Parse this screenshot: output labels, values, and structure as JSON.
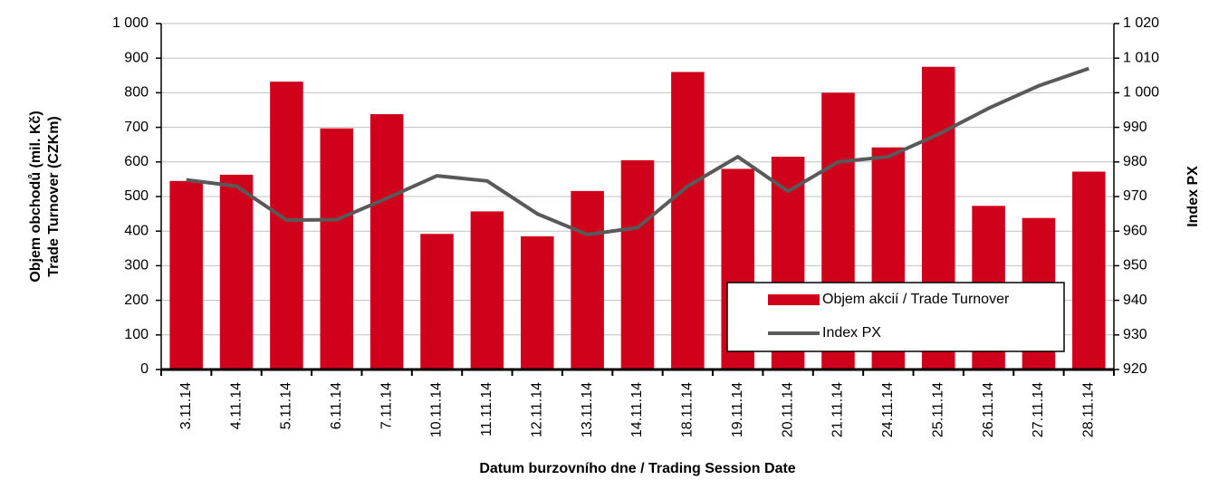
{
  "chart_data": {
    "type": "bar-line",
    "ylabel": [
      "Objem obchodů (mil. Kč)",
      "Trade Turnover (CZKm)"
    ],
    "y2label": "Index PX",
    "xlabel": "Datum burzovního dne / Trading Session Date",
    "categories": [
      "3.11.14",
      "4.11.14",
      "5.11.14",
      "6.11.14",
      "7.11.14",
      "10.11.14",
      "11.11.14",
      "12.11.14",
      "13.11.14",
      "14.11.14",
      "18.11.14",
      "19.11.14",
      "20.11.14",
      "21.11.14",
      "24.11.14",
      "25.11.14",
      "26.11.14",
      "27.11.14",
      "28.11.14"
    ],
    "series": [
      {
        "name": "Objem akcií / Trade Turnover",
        "type": "bar",
        "color": "#d0021b",
        "values": [
          545,
          563,
          832,
          697,
          738,
          392,
          457,
          385,
          516,
          605,
          860,
          580,
          615,
          800,
          642,
          875,
          473,
          438,
          572
        ]
      },
      {
        "name": "Index PX",
        "type": "line",
        "axis": "y2",
        "color": "#595959",
        "values": [
          974.8,
          973,
          963.2,
          963.3,
          969.5,
          976,
          974.5,
          965,
          959,
          961,
          973,
          981.5,
          971.5,
          980,
          981.5,
          988,
          995.5,
          1002,
          1007
        ]
      }
    ],
    "ylim": [
      0,
      1000
    ],
    "yticks": [
      0,
      100,
      200,
      300,
      400,
      500,
      600,
      700,
      800,
      900,
      {
        "value": 1000,
        "label": "1 000"
      }
    ],
    "y2lim": [
      920,
      1020
    ],
    "y2ticks": [
      920,
      930,
      940,
      950,
      960,
      970,
      980,
      990,
      {
        "value": 1000,
        "label": "1 000"
      },
      {
        "value": 1010,
        "label": "1 010"
      },
      {
        "value": 1020,
        "label": "1 020"
      }
    ],
    "grid": true,
    "legend": "lower right"
  }
}
